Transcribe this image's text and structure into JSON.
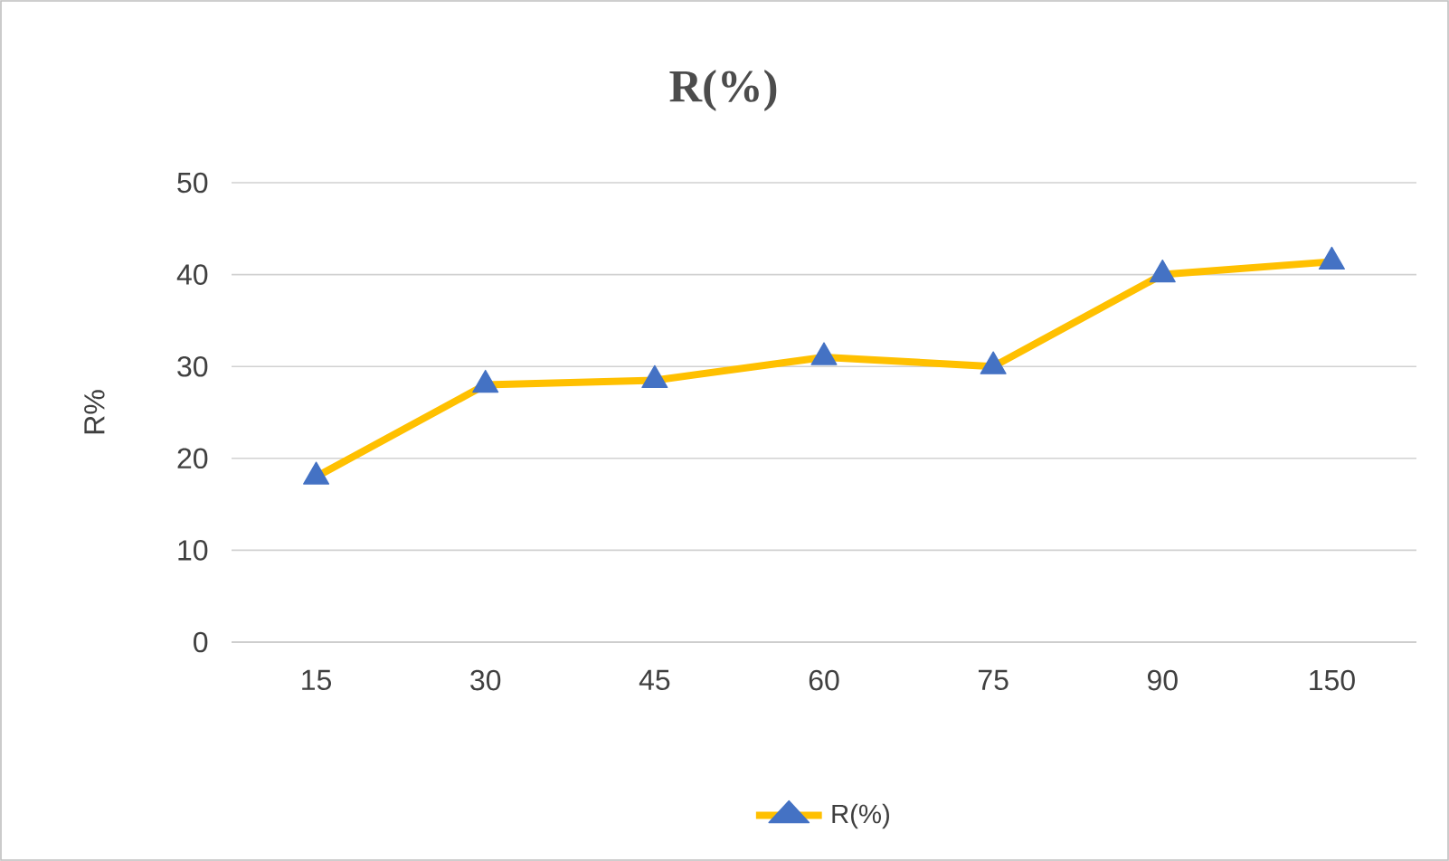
{
  "chart_data": {
    "type": "line",
    "title": "R(%)",
    "ylabel": "R%",
    "categories": [
      "15",
      "30",
      "45",
      "60",
      "75",
      "90",
      "150"
    ],
    "series": [
      {
        "name": "R(%)",
        "color": "#ffc000",
        "values": [
          18,
          28,
          28.5,
          31,
          30,
          40,
          41.4
        ]
      }
    ],
    "ylim": [
      0,
      50
    ],
    "yticks": [
      0,
      10,
      20,
      30,
      40,
      50
    ],
    "grid": "y",
    "legend": "bottom",
    "marker": "triangle",
    "line_style": "solid"
  }
}
